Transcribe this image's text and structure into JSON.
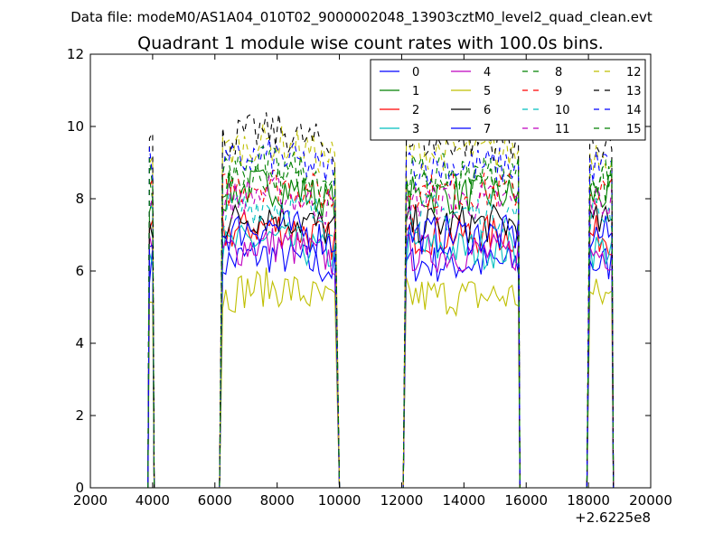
{
  "header": {
    "data_file": "Data file: modeM0/AS1A04_010T02_9000002048_13903cztM0_level2_quad_clean.evt"
  },
  "chart_data": {
    "type": "line",
    "title": "Quadrant 1 module wise count rates with 100.0s bins.",
    "xlabel": "",
    "ylabel": "",
    "xlim": [
      2000,
      20000
    ],
    "ylim": [
      0,
      12
    ],
    "x_offset_label": "+2.6225e8",
    "xticks": [
      2000,
      4000,
      6000,
      8000,
      10000,
      12000,
      14000,
      16000,
      18000,
      20000
    ],
    "yticks": [
      0,
      2,
      4,
      6,
      8,
      10,
      12
    ],
    "grid": false,
    "legend_position": "top-right",
    "orbits": [
      {
        "start": 3900,
        "end": 4000,
        "rise": 3850,
        "fall": 4050
      },
      {
        "start": 6250,
        "end": 9850,
        "rise": 6150,
        "fall": 10000
      },
      {
        "start": 12150,
        "end": 15750,
        "rise": 12050,
        "fall": 15800
      },
      {
        "start": 18050,
        "end": 18750,
        "rise": 17950,
        "fall": 18800
      }
    ],
    "series": [
      {
        "name": "0",
        "color": "#0000ff",
        "dash": false,
        "level": 6.2
      },
      {
        "name": "1",
        "color": "#008000",
        "dash": false,
        "level": 8.1
      },
      {
        "name": "2",
        "color": "#ff0000",
        "dash": false,
        "level": 7.0
      },
      {
        "name": "3",
        "color": "#00bfbf",
        "dash": false,
        "level": 6.6
      },
      {
        "name": "4",
        "color": "#bf00bf",
        "dash": false,
        "level": 6.5
      },
      {
        "name": "5",
        "color": "#bfbf00",
        "dash": false,
        "level": 5.3
      },
      {
        "name": "6",
        "color": "#000000",
        "dash": false,
        "level": 7.3
      },
      {
        "name": "7",
        "color": "#0000ff",
        "dash": false,
        "level": 7.0
      },
      {
        "name": "8",
        "color": "#008000",
        "dash": true,
        "level": 8.4
      },
      {
        "name": "9",
        "color": "#ff0000",
        "dash": true,
        "level": 8.2
      },
      {
        "name": "10",
        "color": "#00bfbf",
        "dash": true,
        "level": 7.6
      },
      {
        "name": "11",
        "color": "#bf00bf",
        "dash": true,
        "level": 7.9
      },
      {
        "name": "12",
        "color": "#bfbf00",
        "dash": true,
        "level": 9.3
      },
      {
        "name": "13",
        "color": "#000000",
        "dash": true,
        "level": 9.6
      },
      {
        "name": "14",
        "color": "#0000ff",
        "dash": true,
        "level": 8.9
      },
      {
        "name": "15",
        "color": "#008000",
        "dash": true,
        "level": 8.7
      }
    ]
  }
}
